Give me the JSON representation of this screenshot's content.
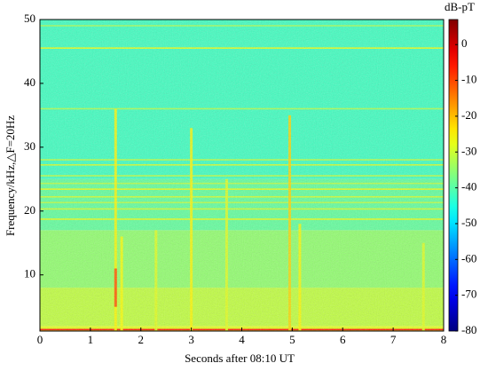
{
  "chart_data": {
    "type": "spectrogram",
    "xlabel": "Seconds after 08:10 UT",
    "ylabel": "Frequency/kHz,△F=20Hz",
    "colorbar_label": "dB-pT",
    "colormap": "jet",
    "xlim": [
      0,
      8
    ],
    "xticks": [
      0,
      1,
      2,
      3,
      4,
      5,
      6,
      7,
      8
    ],
    "ylim": [
      1.2,
      50
    ],
    "yticks": [
      10,
      20,
      30,
      40,
      50
    ],
    "clim": [
      -80,
      7
    ],
    "cticks": [
      0,
      -10,
      -20,
      -30,
      -40,
      -50,
      -60,
      -70,
      -80
    ],
    "bands": [
      {
        "from": 1.2,
        "to": 2,
        "db": -28
      },
      {
        "from": 2,
        "to": 8,
        "db": -31
      },
      {
        "from": 8,
        "to": 17,
        "db": -35
      },
      {
        "from": 17,
        "to": 25,
        "db": -39
      },
      {
        "from": 25,
        "to": 50,
        "db": -42
      }
    ],
    "lines": [
      {
        "freq": 1.4,
        "db": -5
      },
      {
        "freq": 18.7,
        "db": -28
      },
      {
        "freq": 20.3,
        "db": -30
      },
      {
        "freq": 21.3,
        "db": -32
      },
      {
        "freq": 22.2,
        "db": -30
      },
      {
        "freq": 23.4,
        "db": -28
      },
      {
        "freq": 24.3,
        "db": -32
      },
      {
        "freq": 25.5,
        "db": -32
      },
      {
        "freq": 27.2,
        "db": -30
      },
      {
        "freq": 28,
        "db": -32
      },
      {
        "freq": 36,
        "db": -33
      },
      {
        "freq": 45.5,
        "db": -28
      },
      {
        "freq": 49,
        "db": -34
      }
    ],
    "transients": [
      {
        "time": 1.5,
        "from": 1.2,
        "to": 36,
        "db": -25
      },
      {
        "time": 1.5,
        "from": 5,
        "to": 11,
        "db": -10
      },
      {
        "time": 1.62,
        "from": 1.2,
        "to": 16,
        "db": -26
      },
      {
        "time": 2.3,
        "from": 1.2,
        "to": 17,
        "db": -28
      },
      {
        "time": 3.0,
        "from": 1.2,
        "to": 33,
        "db": -25
      },
      {
        "time": 3.7,
        "from": 1.2,
        "to": 25,
        "db": -28
      },
      {
        "time": 4.95,
        "from": 1.2,
        "to": 35,
        "db": -22
      },
      {
        "time": 5.15,
        "from": 1.2,
        "to": 18,
        "db": -25
      },
      {
        "time": 7.6,
        "from": 1.2,
        "to": 15,
        "db": -28
      }
    ]
  }
}
